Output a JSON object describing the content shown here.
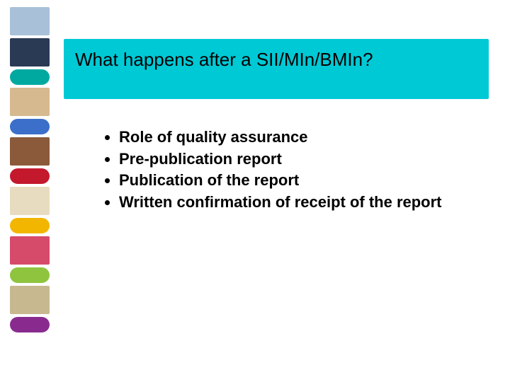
{
  "sidebar": {
    "items": [
      {
        "type": "thumb",
        "color": "#a8c0d8"
      },
      {
        "type": "thumb",
        "color": "#2a3a55"
      },
      {
        "type": "chip",
        "color": "#00a9a0"
      },
      {
        "type": "thumb",
        "color": "#d6b98f"
      },
      {
        "type": "chip",
        "color": "#3b6fc9"
      },
      {
        "type": "thumb",
        "color": "#8a5a3a"
      },
      {
        "type": "chip",
        "color": "#c4182d"
      },
      {
        "type": "thumb",
        "color": "#e8dcc0"
      },
      {
        "type": "chip",
        "color": "#f3b600"
      },
      {
        "type": "thumb",
        "color": "#d64a6a"
      },
      {
        "type": "chip",
        "color": "#8fc43f"
      },
      {
        "type": "thumb",
        "color": "#c8b890"
      },
      {
        "type": "chip",
        "color": "#892b8e"
      }
    ]
  },
  "header": {
    "title": "What happens after a SII/MIn/BMIn?",
    "title_fontsize": 26,
    "title_fontweight": 400,
    "title_color": "#000000",
    "bar_color": "#00c9d6"
  },
  "body": {
    "bullets": [
      "Role of quality assurance",
      "Pre-publication report",
      "Publication of the report",
      "Written confirmation of receipt of the report"
    ],
    "bullet_fontsize": 22,
    "bullet_fontweight": 700,
    "bullet_color": "#000000",
    "line_height": 1.3
  }
}
